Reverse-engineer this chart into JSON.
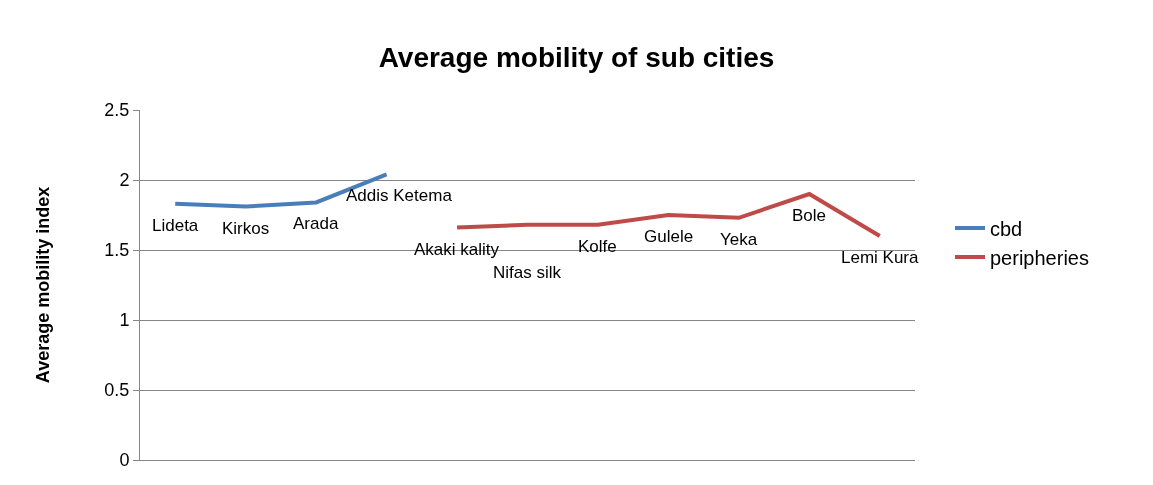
{
  "chart_data": {
    "type": "line",
    "title": "Average mobility of sub cities",
    "ylabel": "Average mobility index",
    "categories": [
      null,
      null,
      null,
      null,
      null,
      null,
      null,
      null,
      null,
      null,
      null
    ],
    "series": [
      {
        "name": "cbd",
        "color": "#4a7ebb",
        "values": [
          1.83,
          1.81,
          1.84,
          2.04,
          null,
          null,
          null,
          null,
          null,
          null,
          null
        ],
        "value_labels": [
          "Lideta",
          "Kirkos",
          "Arada",
          "Addis Ketema",
          null,
          null,
          null,
          null,
          null,
          null,
          null
        ]
      },
      {
        "name": "peripheries",
        "color": "#be4b48",
        "values": [
          null,
          null,
          null,
          null,
          1.66,
          1.68,
          1.68,
          1.75,
          1.73,
          1.9,
          1.6
        ],
        "value_labels": [
          null,
          null,
          null,
          null,
          "Akaki kality",
          "Nifas silk",
          "Kolfe",
          "Gulele",
          "Yeka",
          "Bole",
          "Lemi Kura"
        ]
      }
    ],
    "ylim": [
      0,
      2.5
    ],
    "yticks": [
      0,
      0.5,
      1,
      1.5,
      2,
      2.5
    ],
    "grid": "y",
    "legend": "right",
    "marker": "none",
    "line_style": "solid"
  }
}
